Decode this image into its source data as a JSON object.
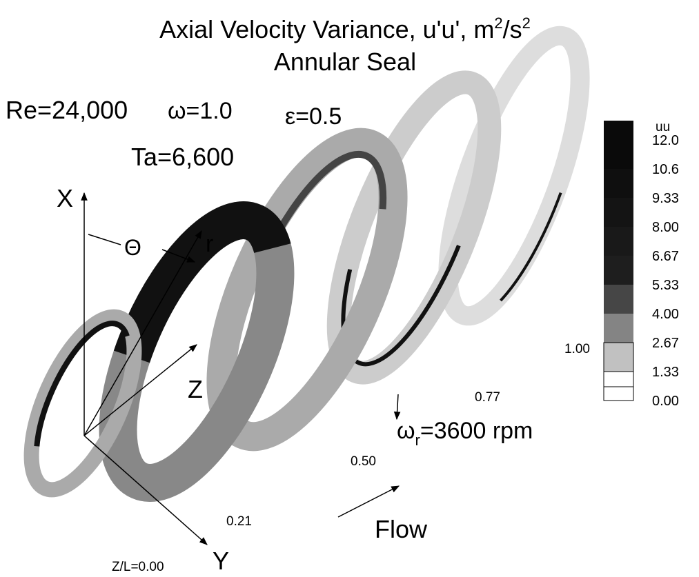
{
  "title": {
    "text": "Axial Velocity Variance, u'u', m",
    "sup1": "2",
    "mid": "/s",
    "sup2": "2",
    "line2": "Annular Seal"
  },
  "params": {
    "re": "Re=24,000",
    "omega": "ω=1.0",
    "eps": "ε=0.5",
    "ta": "Ta=6,600"
  },
  "axes": {
    "x": "X",
    "y": "Y",
    "z": "Z",
    "r": "r",
    "theta": "Θ"
  },
  "stations": [
    "Z/L=0.00",
    "0.21",
    "0.50",
    "0.77",
    "1.00"
  ],
  "rotation": {
    "sym": "ω",
    "sub": "r",
    "text": "=3600 rpm"
  },
  "flow": "Flow",
  "colorbar": {
    "title": "uu",
    "labels": [
      "12.0",
      "10.6",
      "9.33",
      "8.00",
      "6.67",
      "5.33",
      "4.00",
      "2.67",
      "1.33",
      "0.00"
    ]
  }
}
